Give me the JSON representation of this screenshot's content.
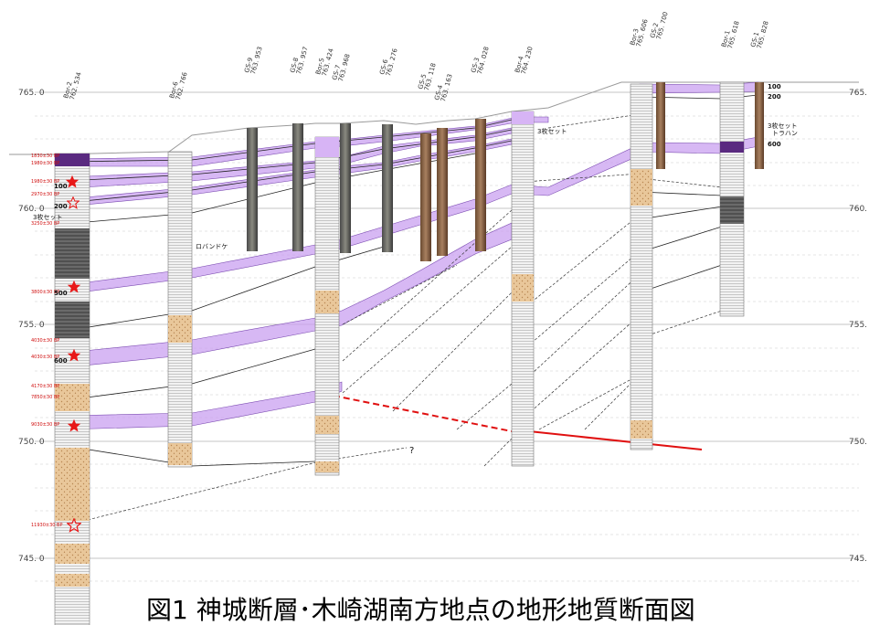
{
  "figure": {
    "caption": "図1  神城断層･木崎湖南方地点の地形地質断面図"
  },
  "elevation_axis": {
    "left_labels": [
      "765. 0",
      "760. 0",
      "755. 0",
      "750. 0",
      "745. 0"
    ],
    "right_labels": [
      "765.",
      "760.",
      "755.",
      "750.",
      "745."
    ]
  },
  "boreholes": [
    {
      "name": "Bor-2",
      "elev": "762. 534"
    },
    {
      "name": "Bor-6",
      "elev": "762. 766"
    },
    {
      "name": "GS-9",
      "elev": "763. 953"
    },
    {
      "name": "GS-8",
      "elev": "763. 957"
    },
    {
      "name": "Bor-5",
      "elev": "763. 424"
    },
    {
      "name": "GS-7",
      "elev": "763. 968"
    },
    {
      "name": "GS-6",
      "elev": "763. 276"
    },
    {
      "name": "GS-5",
      "elev": "763. 118"
    },
    {
      "name": "GS-4",
      "elev": "763. 163"
    },
    {
      "name": "GS-3",
      "elev": "764. 028"
    },
    {
      "name": "Bor-4",
      "elev": "764. 230"
    },
    {
      "name": "Bor-3",
      "elev": "765. 606"
    },
    {
      "name": "GS-2",
      "elev": "765. 700"
    },
    {
      "name": "Bor-1",
      "elev": "765. 618"
    },
    {
      "name": "GS-1",
      "elev": "765. 828"
    }
  ],
  "bor2_ages": [
    "1830±30 BP",
    "1980±30 BP",
    "1980±30 BP",
    "2970±30 BP",
    "3250±30 BP",
    "3800±30 BP",
    "4030±30 BP",
    "4030±30 BP",
    "4170±30 BP",
    "7850±30 BP",
    "9030±30 BP",
    "11930±30 BP"
  ],
  "horizon_labels": [
    "100",
    "200",
    "500",
    "600"
  ],
  "right_horizon_labels": [
    "100",
    "200",
    "600"
  ],
  "notes": {
    "three_set_left": "3枚セット",
    "three_set_mid": "3枚セット",
    "three_set_right": "3枚セット",
    "trahan": "トラハン",
    "obandoke": "ロバンドケ",
    "question": "?"
  },
  "colors": {
    "tephra_band": "#c9a0f0",
    "tephra_dark": "#5a2a80",
    "fault": "#e01010",
    "age_text": "#d01010",
    "star": "#e81818"
  }
}
